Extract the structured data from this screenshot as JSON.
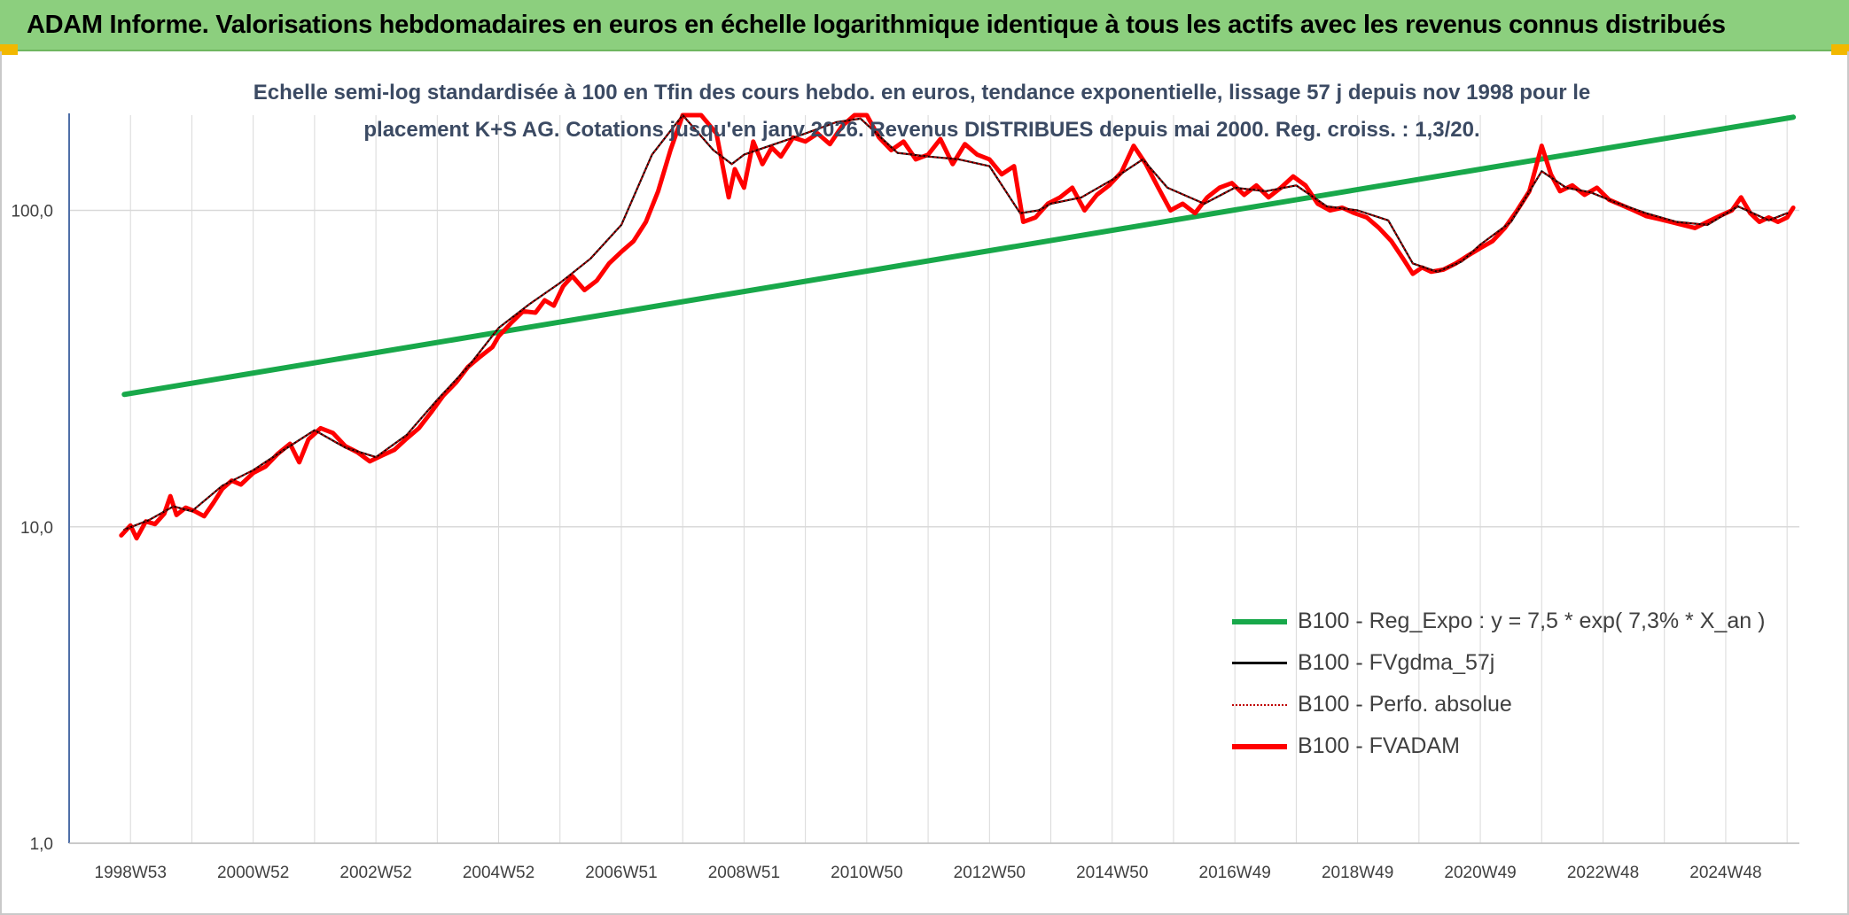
{
  "header": {
    "title": "ADAM Informe. Valorisations hebdomadaires en euros en échelle logarithmique identique à tous les actifs avec les revenus connus distribués"
  },
  "colors": {
    "header_bg": "#8ccf7e",
    "trend": "#18a84a",
    "smoothed": "#000000",
    "perf": "#c00000",
    "fvadam": "#ff0000",
    "grid": "#d9d9d9",
    "corner": "#f2b800"
  },
  "chart_data": {
    "type": "line",
    "subtitle_line1": "Echelle semi-log standardisée à 100 en Tfin des cours hebdo. en euros, tendance exponentielle, lissage 57 j depuis nov 1998 pour le",
    "subtitle_line2": "placement K+S AG. Cotations jusqu'en janv 2026. Revenus DISTRIBUES depuis mai 2000. Reg. croiss. : 1,3/20.",
    "y_scale": "log",
    "ylim": [
      1,
      200
    ],
    "y_ticks": [
      {
        "value": 1,
        "label": "1,0"
      },
      {
        "value": 10,
        "label": "10,0"
      },
      {
        "value": 100,
        "label": "100,0"
      }
    ],
    "xlim": [
      1998.0,
      2026.2
    ],
    "x_ticks": [
      {
        "value": 1999.0,
        "label": "1998W53"
      },
      {
        "value": 2001.0,
        "label": "2000W52"
      },
      {
        "value": 2003.0,
        "label": "2002W52"
      },
      {
        "value": 2005.0,
        "label": "2004W52"
      },
      {
        "value": 2007.0,
        "label": "2006W51"
      },
      {
        "value": 2009.0,
        "label": "2008W51"
      },
      {
        "value": 2011.0,
        "label": "2010W50"
      },
      {
        "value": 2013.0,
        "label": "2012W50"
      },
      {
        "value": 2015.0,
        "label": "2014W50"
      },
      {
        "value": 2017.0,
        "label": "2016W49"
      },
      {
        "value": 2019.0,
        "label": "2018W49"
      },
      {
        "value": 2021.0,
        "label": "2020W49"
      },
      {
        "value": 2023.0,
        "label": "2022W48"
      },
      {
        "value": 2025.0,
        "label": "2024W48"
      }
    ],
    "grid": true,
    "legend_position": "bottom-right",
    "series": [
      {
        "name": "B100 - Reg_Expo : y = 7,5 * exp( 7,3% *  X_an )",
        "key": "trend",
        "x": [
          1998.9,
          2026.1
        ],
        "values": [
          26.2,
          197
        ]
      },
      {
        "name": "B100 - FVgdma_57j",
        "key": "smoothed",
        "x": [
          1998.9,
          1999.3,
          1999.7,
          2000.0,
          2000.5,
          2001.0,
          2001.5,
          2002.0,
          2002.5,
          2003.0,
          2003.5,
          2004.0,
          2004.5,
          2005.0,
          2005.5,
          2006.0,
          2006.5,
          2007.0,
          2007.5,
          2008.0,
          2008.5,
          2008.8,
          2009.0,
          2009.5,
          2010.0,
          2010.5,
          2010.9,
          2011.5,
          2012.0,
          2012.5,
          2013.0,
          2013.5,
          2013.8,
          2014.0,
          2014.5,
          2015.0,
          2015.5,
          2015.9,
          2016.5,
          2017.0,
          2017.5,
          2018.0,
          2018.5,
          2019.0,
          2019.5,
          2019.9,
          2020.3,
          2020.7,
          2021.0,
          2021.5,
          2022.0,
          2022.4,
          2022.8,
          2023.2,
          2023.7,
          2024.2,
          2024.7,
          2025.2,
          2025.7,
          2026.0
        ],
        "values": [
          9.8,
          10.5,
          11.6,
          11.2,
          13.5,
          15.1,
          17.5,
          20.2,
          17.8,
          16.6,
          19.5,
          25.2,
          32.0,
          42.5,
          50.5,
          59.0,
          70.5,
          90.0,
          150,
          230,
          155,
          140,
          150,
          162,
          175,
          190,
          195,
          152,
          148,
          145,
          138,
          98,
          100,
          105,
          110,
          125,
          145,
          118,
          105,
          118,
          115,
          120,
          103,
          100,
          93,
          68,
          64,
          69,
          78,
          92,
          133,
          118,
          114,
          106,
          98,
          92,
          90,
          103,
          93,
          98
        ]
      },
      {
        "name": "B100 - Perfo. absolue",
        "key": "perf",
        "x": [
          1998.9,
          1999.3,
          1999.7,
          2000.0,
          2000.5,
          2001.0,
          2001.5,
          2002.0,
          2002.5,
          2003.0,
          2003.5,
          2004.0,
          2004.5,
          2005.0,
          2005.5,
          2006.0,
          2006.5,
          2007.0,
          2007.5,
          2008.0,
          2008.5,
          2008.8,
          2009.0,
          2009.5,
          2010.0,
          2010.5,
          2010.9,
          2011.5,
          2012.0,
          2012.5,
          2013.0,
          2013.5,
          2013.8,
          2014.0,
          2014.5,
          2015.0,
          2015.5,
          2015.9,
          2016.5,
          2017.0,
          2017.5,
          2018.0,
          2018.5,
          2019.0,
          2019.5,
          2019.9,
          2020.3,
          2020.7,
          2021.0,
          2021.5,
          2022.0,
          2022.4,
          2022.8,
          2023.2,
          2023.7,
          2024.2,
          2024.7,
          2025.2,
          2025.7,
          2026.0
        ],
        "values": [
          9.8,
          10.5,
          11.6,
          11.2,
          13.5,
          15.1,
          17.5,
          20.2,
          17.8,
          16.6,
          19.5,
          25.2,
          32.0,
          42.5,
          50.5,
          59.0,
          70.5,
          90.0,
          150,
          230,
          155,
          140,
          150,
          162,
          175,
          190,
          195,
          152,
          148,
          145,
          138,
          98,
          100,
          105,
          110,
          125,
          145,
          118,
          105,
          118,
          115,
          120,
          103,
          100,
          93,
          68,
          64,
          69,
          78,
          92,
          133,
          118,
          114,
          106,
          98,
          92,
          90,
          103,
          93,
          98
        ]
      },
      {
        "name": "B100 - FVADAM",
        "key": "fvadam",
        "x": [
          1998.85,
          1999.0,
          1999.1,
          1999.25,
          1999.4,
          1999.55,
          1999.65,
          1999.75,
          1999.9,
          2000.05,
          2000.2,
          2000.35,
          2000.5,
          2000.65,
          2000.8,
          2001.0,
          2001.2,
          2001.4,
          2001.6,
          2001.75,
          2001.9,
          2002.1,
          2002.3,
          2002.5,
          2002.7,
          2002.9,
          2003.1,
          2003.3,
          2003.5,
          2003.7,
          2003.9,
          2004.1,
          2004.3,
          2004.5,
          2004.7,
          2004.9,
          2005.0,
          2005.2,
          2005.4,
          2005.6,
          2005.75,
          2005.9,
          2006.05,
          2006.2,
          2006.4,
          2006.6,
          2006.8,
          2007.0,
          2007.2,
          2007.4,
          2007.6,
          2007.8,
          2008.0,
          2008.3,
          2008.55,
          2008.75,
          2008.85,
          2009.0,
          2009.15,
          2009.3,
          2009.45,
          2009.6,
          2009.8,
          2010.0,
          2010.2,
          2010.4,
          2010.6,
          2010.8,
          2011.0,
          2011.2,
          2011.4,
          2011.6,
          2011.8,
          2012.0,
          2012.2,
          2012.4,
          2012.6,
          2012.8,
          2013.0,
          2013.2,
          2013.4,
          2013.55,
          2013.75,
          2013.95,
          2014.15,
          2014.35,
          2014.55,
          2014.75,
          2014.95,
          2015.15,
          2015.35,
          2015.55,
          2015.75,
          2015.95,
          2016.15,
          2016.35,
          2016.55,
          2016.75,
          2016.95,
          2017.15,
          2017.35,
          2017.55,
          2017.75,
          2017.95,
          2018.15,
          2018.35,
          2018.55,
          2018.75,
          2018.95,
          2019.15,
          2019.35,
          2019.55,
          2019.75,
          2019.9,
          2020.05,
          2020.2,
          2020.4,
          2020.6,
          2020.8,
          2021.0,
          2021.2,
          2021.4,
          2021.6,
          2021.8,
          2022.0,
          2022.15,
          2022.3,
          2022.5,
          2022.7,
          2022.9,
          2023.1,
          2023.3,
          2023.5,
          2023.7,
          2023.9,
          2024.1,
          2024.3,
          2024.5,
          2024.7,
          2024.9,
          2025.1,
          2025.25,
          2025.4,
          2025.55,
          2025.7,
          2025.85,
          2026.0,
          2026.1
        ],
        "values": [
          9.4,
          10.1,
          9.2,
          10.4,
          10.2,
          11.0,
          12.5,
          10.9,
          11.5,
          11.2,
          10.8,
          11.9,
          13.2,
          14.0,
          13.6,
          14.8,
          15.5,
          17.0,
          18.3,
          16.0,
          18.9,
          20.5,
          19.8,
          18.0,
          17.2,
          16.1,
          16.8,
          17.5,
          19.0,
          20.5,
          23.0,
          26.0,
          28.5,
          32.0,
          34.5,
          37.0,
          40.0,
          44.0,
          48.0,
          47.5,
          52.0,
          50.0,
          57.5,
          62.0,
          56.0,
          60.0,
          68.0,
          74.0,
          80.0,
          92.0,
          115.0,
          155.0,
          215.0,
          240.0,
          175.0,
          110.0,
          135.0,
          118.0,
          165.0,
          140.0,
          158.0,
          148.0,
          170.0,
          165.0,
          175.0,
          162.0,
          185.0,
          200.0,
          230.0,
          170.0,
          155.0,
          165.0,
          145.0,
          150.0,
          168.0,
          140.0,
          162.0,
          150.0,
          145.0,
          130.0,
          138.0,
          92.0,
          95.0,
          105.0,
          110.0,
          118.0,
          100.0,
          112.0,
          120.0,
          132.0,
          160.0,
          140.0,
          118.0,
          100.0,
          105.0,
          98.0,
          110.0,
          118.0,
          122.0,
          112.0,
          120.0,
          110.0,
          118.0,
          128.0,
          120.0,
          105.0,
          100.0,
          102.0,
          98.0,
          95.0,
          88.0,
          80.0,
          70.0,
          63.0,
          66.0,
          64.0,
          65.0,
          68.0,
          72.0,
          76.0,
          80.0,
          88.0,
          100.0,
          115.0,
          160.0,
          130.0,
          115.0,
          120.0,
          112.0,
          118.0,
          108.0,
          104.0,
          100.0,
          96.0,
          94.0,
          92.0,
          90.0,
          88.0,
          92.0,
          96.0,
          100.0,
          110.0,
          98.0,
          92.0,
          95.0,
          92.0,
          95.0,
          102.0
        ]
      }
    ]
  }
}
